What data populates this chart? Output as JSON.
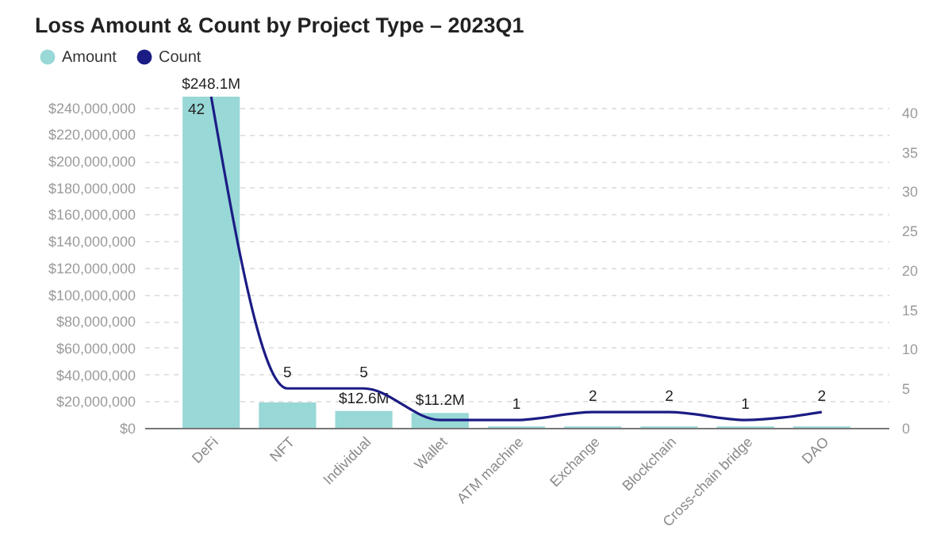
{
  "chart_data": {
    "type": "bar",
    "title": "Loss Amount & Count by Project Type – 2023Q1",
    "categories": [
      "DeFi",
      "NFT",
      "Individual",
      "Wallet",
      "ATM machine",
      "Exchange",
      "Blockchain",
      "Cross-chain bridge",
      "DAO"
    ],
    "series": [
      {
        "name": "Amount",
        "color": "#98d8d6",
        "values": [
          248100000,
          19000000,
          12600000,
          11200000,
          1000000,
          1000000,
          1000000,
          1000000,
          1000000
        ],
        "value_labels": [
          "$248.1M",
          null,
          "$12.6M",
          "$11.2M",
          null,
          null,
          null,
          null,
          null
        ]
      },
      {
        "name": "Count",
        "type": "line",
        "axis": "y2",
        "color": "#1c1c85",
        "values": [
          42,
          5,
          5,
          1,
          1,
          2,
          2,
          1,
          2
        ],
        "value_labels": [
          "42",
          "5",
          "5",
          null,
          "1",
          "2",
          "2",
          "1",
          "2"
        ]
      }
    ],
    "ylim": [
      0,
      248100000
    ],
    "yticks": [
      {
        "value": 0,
        "label": "$0"
      },
      {
        "value": 20000000,
        "label": "$20,000,000"
      },
      {
        "value": 40000000,
        "label": "$40,000,000"
      },
      {
        "value": 60000000,
        "label": "$60,000,000"
      },
      {
        "value": 80000000,
        "label": "$80,000,000"
      },
      {
        "value": 100000000,
        "label": "$100,000,000"
      },
      {
        "value": 120000000,
        "label": "$120,000,000"
      },
      {
        "value": 140000000,
        "label": "$140,000,000"
      },
      {
        "value": 160000000,
        "label": "$160,000,000"
      },
      {
        "value": 180000000,
        "label": "$180,000,000"
      },
      {
        "value": 200000000,
        "label": "$200,000,000"
      },
      {
        "value": 220000000,
        "label": "$220,000,000"
      },
      {
        "value": 240000000,
        "label": "$240,000,000"
      }
    ],
    "y2lim": [
      0,
      42
    ],
    "y2ticks": [
      0,
      5,
      10,
      15,
      20,
      25,
      30,
      35,
      40
    ],
    "grid": "y",
    "legend": "top left"
  }
}
